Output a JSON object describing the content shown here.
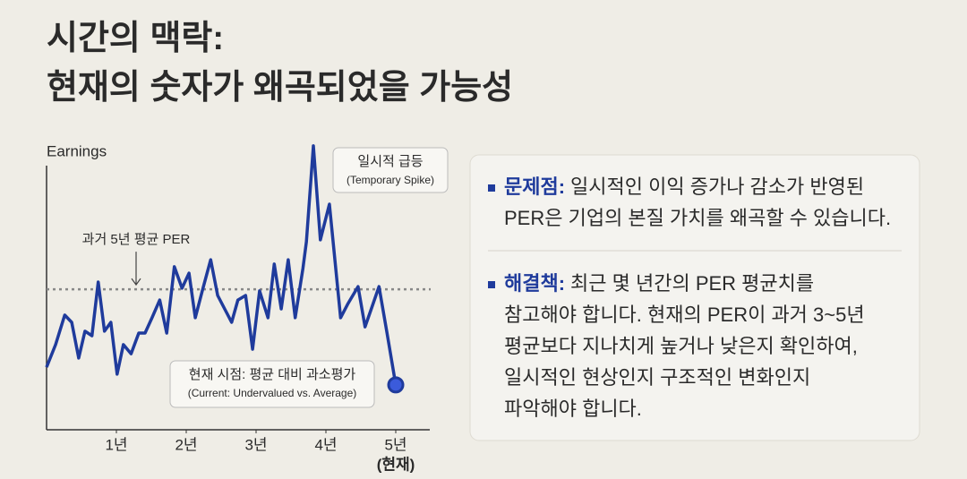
{
  "header": {
    "title_lines": [
      "시간의 맥락:",
      "현재의 숫자가 왜곡되었을 가능성"
    ]
  },
  "chart_data": {
    "type": "line",
    "y_label": "Earnings",
    "x": [
      0,
      0.13,
      0.26,
      0.36,
      0.46,
      0.55,
      0.65,
      0.74,
      0.83,
      0.92,
      1.01,
      1.1,
      1.21,
      1.32,
      1.41,
      1.51,
      1.62,
      1.72,
      1.83,
      1.94,
      2.04,
      2.13,
      2.23,
      2.35,
      2.45,
      2.55,
      2.65,
      2.74,
      2.85,
      2.95,
      3.05,
      3.17,
      3.26,
      3.36,
      3.46,
      3.56,
      3.67,
      3.72,
      3.82,
      3.92,
      4.05,
      4.21,
      4.31,
      4.46,
      4.56,
      4.65,
      4.76,
      4.87,
      5
    ],
    "series": [
      {
        "name": "Earnings",
        "color": "#1f3b9c",
        "values": [
          23.3,
          31.7,
          42.7,
          40,
          26.7,
          36.7,
          35,
          55,
          36.7,
          40,
          20.7,
          31.7,
          28.3,
          36,
          36,
          41.7,
          48.3,
          36,
          60.7,
          52.7,
          58.3,
          41.7,
          51.7,
          63.3,
          50,
          45,
          40,
          48.3,
          50,
          30,
          51.7,
          41.7,
          61.7,
          45,
          63.3,
          41.7,
          60,
          70,
          105.7,
          70.7,
          84,
          41.7,
          46.7,
          53.3,
          38.3,
          45,
          53.3,
          36.7,
          16.7
        ]
      }
    ],
    "xlim": [
      0,
      5.5
    ],
    "ylim": [
      0,
      110
    ],
    "xticks": [
      {
        "value": 1,
        "label": "1년"
      },
      {
        "value": 2,
        "label": "2년"
      },
      {
        "value": 3,
        "label": "3년"
      },
      {
        "value": 4,
        "label": "4년"
      },
      {
        "value": 5,
        "label": "5년"
      }
    ],
    "current_tick_note": "(현재)",
    "average_line": {
      "value": 52.3,
      "label": "과거 5년 평균 PER"
    },
    "annotations": [
      {
        "title": "일시적 급등",
        "subtitle": "(Temporary Spike)"
      },
      {
        "title": "현재 시점: 평균 대비 과소평가",
        "subtitle": "(Current: Undervalued vs. Average)"
      }
    ]
  },
  "panel": {
    "items": [
      {
        "label": "문제점:",
        "lines": [
          "일시적인 이익 증가나 감소가 반영된",
          "PER은 기업의 본질 가치를 왜곡할 수 있습니다."
        ]
      },
      {
        "label": "해결책:",
        "lines": [
          "최근 몇 년간의 PER 평균치를",
          "참고해야 합니다. 현재의 PER이 과거 3~5년",
          "평균보다 지나치게 높거나 낮은지 확인하여,",
          "일시적인 현상인지 구조적인 변화인지",
          "파악해야 합니다."
        ]
      }
    ]
  }
}
